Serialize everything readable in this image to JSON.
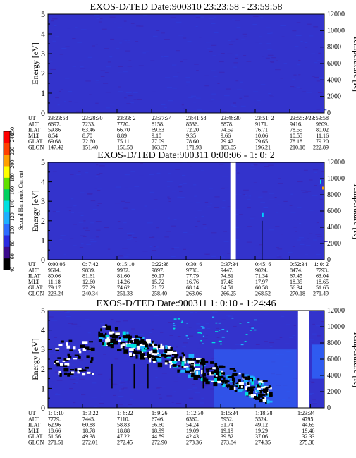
{
  "chart_data": {
    "type": "heatmap",
    "left_ylabel": "Energy [eV]",
    "right_ylabel": "Temperature [K]",
    "colorbar": {
      "label": "Second Harmonic Current",
      "ticks": [
        "40",
        "60",
        "80",
        "100",
        "120",
        "140",
        "160",
        "180",
        "200",
        "220",
        "240",
        "250"
      ],
      "range": [
        40,
        250
      ],
      "colors": [
        "#000000",
        "#3b0a8c",
        "#2a2ae0",
        "#2e6cff",
        "#1fb0ff",
        "#00e0e0",
        "#00d060",
        "#60e000",
        "#ffff00",
        "#ffa000",
        "#ff4000",
        "#ff0000"
      ]
    },
    "row_labels": [
      "UT",
      "ALT",
      "ILAT",
      "MLT",
      "GLAT",
      "GLON"
    ],
    "panels": [
      {
        "title": "EXOS-D/TED   Date:900310  23:23:58 - 23:59:58",
        "ylim": [
          0,
          5
        ],
        "yticks": [
          "0",
          "1",
          "2",
          "3",
          "4",
          "5"
        ],
        "temp_ticks": [
          "0",
          "2000",
          "4000",
          "6000",
          "8000",
          "10000",
          "12000"
        ],
        "temp_lim": [
          0,
          12000
        ],
        "background": "#3333cc",
        "columns": [
          [
            "23:23:58",
            "6697.",
            "59.86",
            "8.54",
            "69.68",
            "147.42"
          ],
          [
            "23:28:30",
            "7233.",
            "63.46",
            "8.70",
            "72.60",
            "151.40"
          ],
          [
            "23:33: 2",
            "7720.",
            "66.70",
            "8.89",
            "75.11",
            "156.58"
          ],
          [
            "23:37:34",
            "8158.",
            "69.63",
            "9.10",
            "77.09",
            "163.37"
          ],
          [
            "23:41:58",
            "8536.",
            "72.20",
            "9.35",
            "78.60",
            "171.93"
          ],
          [
            "23:46:30",
            "8878.",
            "74.59",
            "9.66",
            "79.47",
            "183.05"
          ],
          [
            "23:51: 2",
            "9171.",
            "76.71",
            "10.06",
            "79.65",
            "196.21"
          ],
          [
            "23:55:34",
            "9416.",
            "78.55",
            "10.55",
            "78.18",
            "210.18"
          ],
          [
            "23:59:58",
            "9609.",
            "80.02",
            "11.16",
            "79.20",
            "222.89"
          ]
        ],
        "gaps": []
      },
      {
        "title": "EXOS-D/TED   Date:900311  0:00:06 - 1: 0: 2",
        "ylim": [
          0,
          5
        ],
        "yticks": [
          "0",
          "1",
          "2",
          "3",
          "4",
          "5"
        ],
        "temp_ticks": [
          "0",
          "2000",
          "4000",
          "6000",
          "8000",
          "10000",
          "12000"
        ],
        "temp_lim": [
          0,
          12000
        ],
        "background": "#3333cc",
        "columns": [
          [
            "0:00:06",
            "9614.",
            "80.06",
            "11.18",
            "79.17",
            "223.24"
          ],
          [
            "0: 7:42",
            "9839.",
            "81.61",
            "12.60",
            "77.29",
            "240.34"
          ],
          [
            "0:15:10",
            "9932.",
            "81.60",
            "14.26",
            "74.62",
            "251.33"
          ],
          [
            "0:22:38",
            "9897.",
            "80.17",
            "15.72",
            "71.52",
            "258.40"
          ],
          [
            "0:30: 6",
            "9736.",
            "77.79",
            "16.76",
            "68.14",
            "263.06"
          ],
          [
            "0:37:34",
            "9447.",
            "74.81",
            "17.46",
            "64.51",
            "266.25"
          ],
          [
            "0:45: 6",
            "9024.",
            "71.34",
            "17.97",
            "60.58",
            "268.52"
          ],
          [
            "0:52:34",
            "8474.",
            "67.45",
            "18.35",
            "56.34",
            "270.18"
          ],
          [
            "1: 0: 2",
            "7793.",
            "63.04",
            "18.65",
            "51.65",
            "271.49"
          ]
        ],
        "gaps": [
          [
            0.66,
            0.68
          ]
        ]
      },
      {
        "title": "EXOS-D/TED   Date:900311  1: 0:10 - 1:24:46",
        "ylim": [
          0,
          5
        ],
        "yticks": [
          "0",
          "1",
          "2",
          "3",
          "4",
          "5"
        ],
        "temp_ticks": [
          "0",
          "2000",
          "4000",
          "6000",
          "8000",
          "10000",
          "12000"
        ],
        "temp_lim": [
          0,
          12000
        ],
        "background": "#3333cc",
        "columns": [
          [
            "1: 0:10",
            "7779.",
            "62.96",
            "18.66",
            "51.56",
            "271.51"
          ],
          [
            "1: 3:22",
            "7445.",
            "60.88",
            "18.78",
            "49.38",
            "272.01"
          ],
          [
            "1: 6:22",
            "7110.",
            "58.83",
            "18.88",
            "47.22",
            "272.45"
          ],
          [
            "1: 9:26",
            "6746.",
            "56.60",
            "18.99",
            "44.89",
            "272.90"
          ],
          [
            "1:12:30",
            "6360.",
            "54.24",
            "19.09",
            "42.43",
            "273.36"
          ],
          [
            "1:15:34",
            "5952.",
            "51.74",
            "19.19",
            "39.82",
            "273.84"
          ],
          [
            "1:18:38",
            "5524.",
            "49.12",
            "19.29",
            "37.06",
            "274.35"
          ],
          [
            "1:23:34",
            "4795.",
            "44.65",
            "19.46",
            "32.33",
            "275.30"
          ]
        ],
        "column_positions": [
          0.0,
          0.125,
          0.25,
          0.375,
          0.5,
          0.625,
          0.75,
          0.95
        ],
        "gaps": [
          [
            0.905,
            0.945
          ]
        ]
      }
    ]
  }
}
